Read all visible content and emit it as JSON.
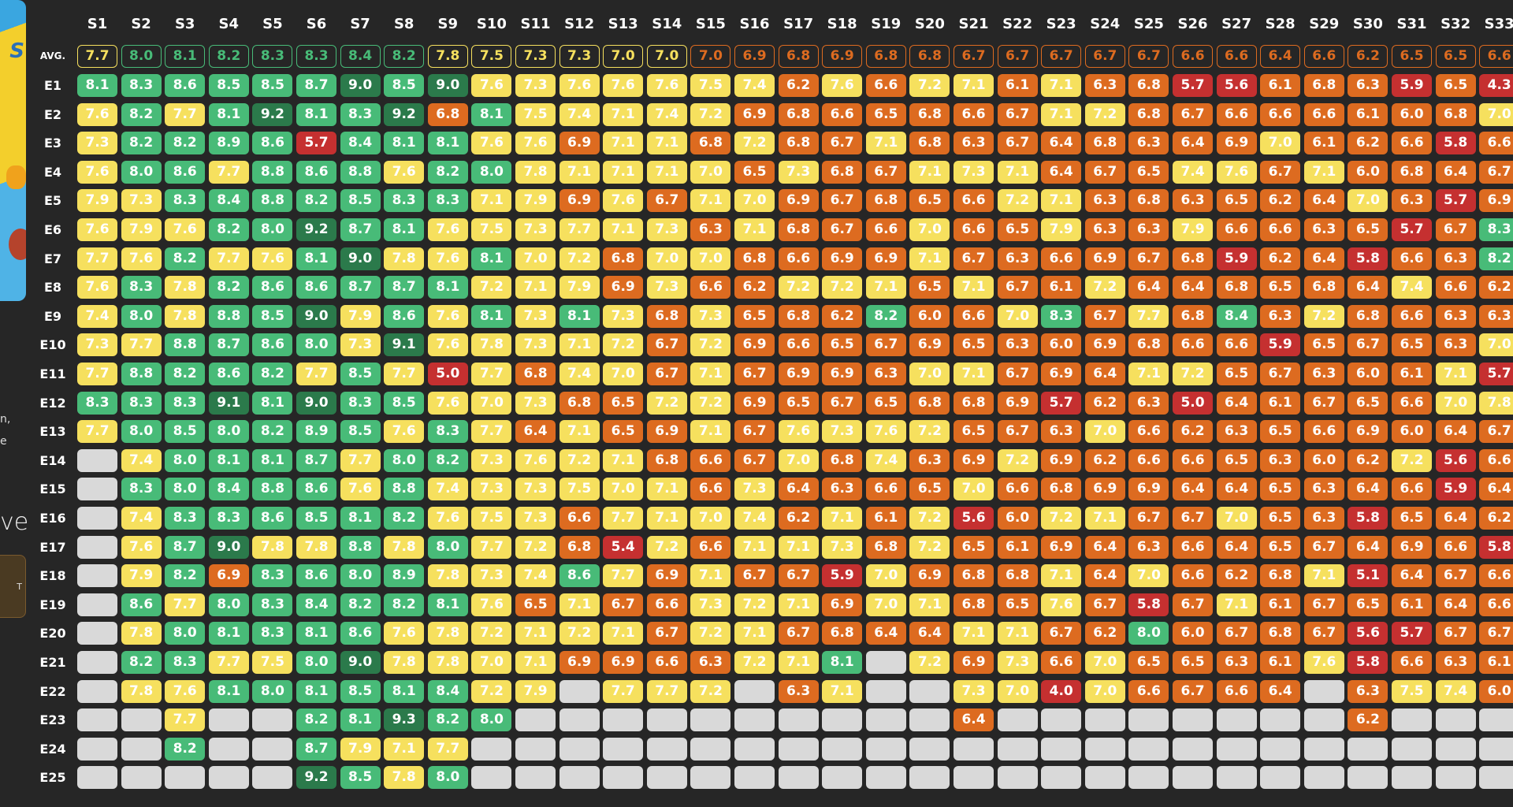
{
  "sidebar": {
    "poster_alt": "Simpsons poster",
    "fragment_1": "n,",
    "fragment_2": "e",
    "fragment_big": "ve",
    "button_label": "T"
  },
  "grid": {
    "avg_label": "AVG.",
    "columns": [
      "S1",
      "S2",
      "S3",
      "S4",
      "S5",
      "S6",
      "S7",
      "S8",
      "S9",
      "S10",
      "S11",
      "S12",
      "S13",
      "S14",
      "S15",
      "S16",
      "S17",
      "S18",
      "S19",
      "S20",
      "S21",
      "S22",
      "S23",
      "S24",
      "S25",
      "S26",
      "S27",
      "S28",
      "S29",
      "S30",
      "S31",
      "S32",
      "S33"
    ],
    "averages": [
      "7.7",
      "8.0",
      "8.1",
      "8.2",
      "8.3",
      "8.3",
      "8.4",
      "8.2",
      "7.8",
      "7.5",
      "7.3",
      "7.3",
      "7.0",
      "7.0",
      "7.0",
      "6.9",
      "6.8",
      "6.9",
      "6.8",
      "6.8",
      "6.7",
      "6.7",
      "6.7",
      "6.7",
      "6.7",
      "6.6",
      "6.6",
      "6.4",
      "6.6",
      "6.2",
      "6.5",
      "6.5",
      "6.6"
    ],
    "rows": [
      {
        "label": "E1",
        "values": [
          "8.1",
          "8.3",
          "8.6",
          "8.5",
          "8.5",
          "8.7",
          "9.0",
          "8.5",
          "9.0",
          "7.6",
          "7.3",
          "7.6",
          "7.6",
          "7.6",
          "7.5",
          "7.4",
          "6.2",
          "7.6",
          "6.6",
          "7.2",
          "7.1",
          "6.1",
          "7.1",
          "6.3",
          "6.8",
          "5.7",
          "5.6",
          "6.1",
          "6.8",
          "6.3",
          "5.9",
          "6.5",
          "4.3"
        ]
      },
      {
        "label": "E2",
        "values": [
          "7.6",
          "8.2",
          "7.7",
          "8.1",
          "9.2",
          "8.1",
          "8.3",
          "9.2",
          "6.8",
          "8.1",
          "7.5",
          "7.4",
          "7.1",
          "7.4",
          "7.2",
          "6.9",
          "6.8",
          "6.6",
          "6.5",
          "6.8",
          "6.6",
          "6.7",
          "7.1",
          "7.2",
          "6.8",
          "6.7",
          "6.6",
          "6.6",
          "6.6",
          "6.1",
          "6.0",
          "6.8",
          "7.0"
        ]
      },
      {
        "label": "E3",
        "values": [
          "7.3",
          "8.2",
          "8.2",
          "8.9",
          "8.6",
          "5.7",
          "8.4",
          "8.1",
          "8.1",
          "7.6",
          "7.6",
          "6.9",
          "7.1",
          "7.1",
          "6.8",
          "7.2",
          "6.8",
          "6.7",
          "7.1",
          "6.8",
          "6.3",
          "6.7",
          "6.4",
          "6.8",
          "6.3",
          "6.4",
          "6.9",
          "7.0",
          "6.1",
          "6.2",
          "6.6",
          "5.8",
          "6.6"
        ]
      },
      {
        "label": "E4",
        "values": [
          "7.6",
          "8.0",
          "8.6",
          "7.7",
          "8.8",
          "8.6",
          "8.8",
          "7.6",
          "8.2",
          "8.0",
          "7.8",
          "7.1",
          "7.1",
          "7.1",
          "7.0",
          "6.5",
          "7.3",
          "6.8",
          "6.7",
          "7.1",
          "7.3",
          "7.1",
          "6.4",
          "6.7",
          "6.5",
          "7.4",
          "7.6",
          "6.7",
          "7.1",
          "6.0",
          "6.8",
          "6.4",
          "6.7"
        ]
      },
      {
        "label": "E5",
        "values": [
          "7.9",
          "7.3",
          "8.3",
          "8.4",
          "8.8",
          "8.2",
          "8.5",
          "8.3",
          "8.3",
          "7.1",
          "7.9",
          "6.9",
          "7.6",
          "6.7",
          "7.1",
          "7.0",
          "6.9",
          "6.7",
          "6.8",
          "6.5",
          "6.6",
          "7.2",
          "7.1",
          "6.3",
          "6.8",
          "6.3",
          "6.5",
          "6.2",
          "6.4",
          "7.0",
          "6.3",
          "5.7",
          "6.9"
        ]
      },
      {
        "label": "E6",
        "values": [
          "7.6",
          "7.9",
          "7.6",
          "8.2",
          "8.0",
          "9.2",
          "8.7",
          "8.1",
          "7.6",
          "7.5",
          "7.3",
          "7.7",
          "7.1",
          "7.3",
          "6.3",
          "7.1",
          "6.8",
          "6.7",
          "6.6",
          "7.0",
          "6.6",
          "6.5",
          "7.9",
          "6.3",
          "6.3",
          "7.9",
          "6.6",
          "6.6",
          "6.3",
          "6.5",
          "5.7",
          "6.7",
          "8.3"
        ]
      },
      {
        "label": "E7",
        "values": [
          "7.7",
          "7.6",
          "8.2",
          "7.7",
          "7.6",
          "8.1",
          "9.0",
          "7.8",
          "7.6",
          "8.1",
          "7.0",
          "7.2",
          "6.8",
          "7.0",
          "7.0",
          "6.8",
          "6.6",
          "6.9",
          "6.9",
          "7.1",
          "6.7",
          "6.3",
          "6.6",
          "6.9",
          "6.7",
          "6.8",
          "5.9",
          "6.2",
          "6.4",
          "5.8",
          "6.6",
          "6.3",
          "8.2"
        ]
      },
      {
        "label": "E8",
        "values": [
          "7.6",
          "8.3",
          "7.8",
          "8.2",
          "8.6",
          "8.6",
          "8.7",
          "8.7",
          "8.1",
          "7.2",
          "7.1",
          "7.9",
          "6.9",
          "7.3",
          "6.6",
          "6.2",
          "7.2",
          "7.2",
          "7.1",
          "6.5",
          "7.1",
          "6.7",
          "6.1",
          "7.2",
          "6.4",
          "6.4",
          "6.8",
          "6.5",
          "6.8",
          "6.4",
          "7.4",
          "6.6",
          "6.2"
        ]
      },
      {
        "label": "E9",
        "values": [
          "7.4",
          "8.0",
          "7.8",
          "8.8",
          "8.5",
          "9.0",
          "7.9",
          "8.6",
          "7.6",
          "8.1",
          "7.3",
          "8.1",
          "7.3",
          "6.8",
          "7.3",
          "6.5",
          "6.8",
          "6.2",
          "8.2",
          "6.0",
          "6.6",
          "7.0",
          "8.3",
          "6.7",
          "7.7",
          "6.8",
          "8.4",
          "6.3",
          "7.2",
          "6.8",
          "6.6",
          "6.3",
          "6.3"
        ]
      },
      {
        "label": "E10",
        "values": [
          "7.3",
          "7.7",
          "8.8",
          "8.7",
          "8.6",
          "8.0",
          "7.3",
          "9.1",
          "7.6",
          "7.8",
          "7.3",
          "7.1",
          "7.2",
          "6.7",
          "7.2",
          "6.9",
          "6.6",
          "6.5",
          "6.7",
          "6.9",
          "6.5",
          "6.3",
          "6.0",
          "6.9",
          "6.8",
          "6.6",
          "6.6",
          "5.9",
          "6.5",
          "6.7",
          "6.5",
          "6.3",
          "7.0"
        ]
      },
      {
        "label": "E11",
        "values": [
          "7.7",
          "8.8",
          "8.2",
          "8.6",
          "8.2",
          "7.7",
          "8.5",
          "7.7",
          "5.0",
          "7.7",
          "6.8",
          "7.4",
          "7.0",
          "6.7",
          "7.1",
          "6.7",
          "6.9",
          "6.9",
          "6.3",
          "7.0",
          "7.1",
          "6.7",
          "6.9",
          "6.4",
          "7.1",
          "7.2",
          "6.5",
          "6.7",
          "6.3",
          "6.0",
          "6.1",
          "7.1",
          "5.7"
        ]
      },
      {
        "label": "E12",
        "values": [
          "8.3",
          "8.3",
          "8.3",
          "9.1",
          "8.1",
          "9.0",
          "8.3",
          "8.5",
          "7.6",
          "7.0",
          "7.3",
          "6.8",
          "6.5",
          "7.2",
          "7.2",
          "6.9",
          "6.5",
          "6.7",
          "6.5",
          "6.8",
          "6.8",
          "6.9",
          "5.7",
          "6.2",
          "6.3",
          "5.0",
          "6.4",
          "6.1",
          "6.7",
          "6.5",
          "6.6",
          "7.0",
          "7.8"
        ]
      },
      {
        "label": "E13",
        "values": [
          "7.7",
          "8.0",
          "8.5",
          "8.0",
          "8.2",
          "8.9",
          "8.5",
          "7.6",
          "8.3",
          "7.7",
          "6.4",
          "7.1",
          "6.5",
          "6.9",
          "7.1",
          "6.7",
          "7.6",
          "7.3",
          "7.6",
          "7.2",
          "6.5",
          "6.7",
          "6.3",
          "7.0",
          "6.6",
          "6.2",
          "6.3",
          "6.5",
          "6.6",
          "6.9",
          "6.0",
          "6.4",
          "6.7"
        ]
      },
      {
        "label": "E14",
        "values": [
          null,
          "7.4",
          "8.0",
          "8.1",
          "8.1",
          "8.7",
          "7.7",
          "8.0",
          "8.2",
          "7.3",
          "7.6",
          "7.2",
          "7.1",
          "6.8",
          "6.6",
          "6.7",
          "7.0",
          "6.8",
          "7.4",
          "6.3",
          "6.9",
          "7.2",
          "6.9",
          "6.2",
          "6.6",
          "6.6",
          "6.5",
          "6.3",
          "6.0",
          "6.2",
          "7.2",
          "5.6",
          "6.6"
        ]
      },
      {
        "label": "E15",
        "values": [
          null,
          "8.3",
          "8.0",
          "8.4",
          "8.8",
          "8.6",
          "7.6",
          "8.8",
          "7.4",
          "7.3",
          "7.3",
          "7.5",
          "7.0",
          "7.1",
          "6.6",
          "7.3",
          "6.4",
          "6.3",
          "6.6",
          "6.5",
          "7.0",
          "6.6",
          "6.8",
          "6.9",
          "6.9",
          "6.4",
          "6.4",
          "6.5",
          "6.3",
          "6.4",
          "6.6",
          "5.9",
          "6.4"
        ]
      },
      {
        "label": "E16",
        "values": [
          null,
          "7.4",
          "8.3",
          "8.3",
          "8.6",
          "8.5",
          "8.1",
          "8.2",
          "7.6",
          "7.5",
          "7.3",
          "6.6",
          "7.7",
          "7.1",
          "7.0",
          "7.4",
          "6.2",
          "7.1",
          "6.1",
          "7.2",
          "5.6",
          "6.0",
          "7.2",
          "7.1",
          "6.7",
          "6.7",
          "7.0",
          "6.5",
          "6.3",
          "5.8",
          "6.5",
          "6.4",
          "6.2"
        ]
      },
      {
        "label": "E17",
        "values": [
          null,
          "7.6",
          "8.7",
          "9.0",
          "7.8",
          "7.8",
          "8.8",
          "7.8",
          "8.0",
          "7.7",
          "7.2",
          "6.8",
          "5.4",
          "7.2",
          "6.6",
          "7.1",
          "7.1",
          "7.3",
          "6.8",
          "7.2",
          "6.5",
          "6.1",
          "6.9",
          "6.4",
          "6.3",
          "6.6",
          "6.4",
          "6.5",
          "6.7",
          "6.4",
          "6.9",
          "6.6",
          "5.8"
        ]
      },
      {
        "label": "E18",
        "values": [
          null,
          "7.9",
          "8.2",
          "6.9",
          "8.3",
          "8.6",
          "8.0",
          "8.9",
          "7.8",
          "7.3",
          "7.4",
          "8.6",
          "7.7",
          "6.9",
          "7.1",
          "6.7",
          "6.7",
          "5.9",
          "7.0",
          "6.9",
          "6.8",
          "6.8",
          "7.1",
          "6.4",
          "7.0",
          "6.6",
          "6.2",
          "6.8",
          "7.1",
          "5.1",
          "6.4",
          "6.7",
          "6.6"
        ]
      },
      {
        "label": "E19",
        "values": [
          null,
          "8.6",
          "7.7",
          "8.0",
          "8.3",
          "8.4",
          "8.2",
          "8.2",
          "8.1",
          "7.6",
          "6.5",
          "7.1",
          "6.7",
          "6.6",
          "7.3",
          "7.2",
          "7.1",
          "6.9",
          "7.0",
          "7.1",
          "6.8",
          "6.5",
          "7.6",
          "6.7",
          "5.8",
          "6.7",
          "7.1",
          "6.1",
          "6.7",
          "6.5",
          "6.1",
          "6.4",
          "6.6"
        ]
      },
      {
        "label": "E20",
        "values": [
          null,
          "7.8",
          "8.0",
          "8.1",
          "8.3",
          "8.1",
          "8.6",
          "7.6",
          "7.8",
          "7.2",
          "7.1",
          "7.2",
          "7.1",
          "6.7",
          "7.2",
          "7.1",
          "6.7",
          "6.8",
          "6.4",
          "6.4",
          "7.1",
          "7.1",
          "6.7",
          "6.2",
          "8.0",
          "6.0",
          "6.7",
          "6.8",
          "6.7",
          "5.6",
          "5.7",
          "6.7",
          "6.7"
        ]
      },
      {
        "label": "E21",
        "values": [
          null,
          "8.2",
          "8.3",
          "7.7",
          "7.5",
          "8.0",
          "9.0",
          "7.8",
          "7.8",
          "7.0",
          "7.1",
          "6.9",
          "6.9",
          "6.6",
          "6.3",
          "7.2",
          "7.1",
          "8.1",
          null,
          "7.2",
          "6.9",
          "7.3",
          "6.6",
          "7.0",
          "6.5",
          "6.5",
          "6.3",
          "6.1",
          "7.6",
          "5.8",
          "6.6",
          "6.3",
          "6.1"
        ]
      },
      {
        "label": "E22",
        "values": [
          null,
          "7.8",
          "7.6",
          "8.1",
          "8.0",
          "8.1",
          "8.5",
          "8.1",
          "8.4",
          "7.2",
          "7.9",
          null,
          "7.7",
          "7.7",
          "7.2",
          null,
          "6.3",
          "7.1",
          null,
          null,
          "7.3",
          "7.0",
          "4.0",
          "7.0",
          "6.6",
          "6.7",
          "6.6",
          "6.4",
          null,
          "6.3",
          "7.5",
          "7.4",
          "6.0"
        ]
      },
      {
        "label": "E23",
        "values": [
          null,
          null,
          "7.7",
          null,
          null,
          "8.2",
          "8.1",
          "9.3",
          "8.2",
          "8.0",
          null,
          null,
          null,
          null,
          null,
          null,
          null,
          null,
          null,
          null,
          "6.4",
          null,
          null,
          null,
          null,
          null,
          null,
          null,
          null,
          "6.2",
          null,
          null,
          null
        ]
      },
      {
        "label": "E24",
        "values": [
          null,
          null,
          "8.2",
          null,
          null,
          "8.7",
          "7.9",
          "7.1",
          "7.7",
          null,
          null,
          null,
          null,
          null,
          null,
          null,
          null,
          null,
          null,
          null,
          null,
          null,
          null,
          null,
          null,
          null,
          null,
          null,
          null,
          null,
          null,
          null,
          null
        ]
      },
      {
        "label": "E25",
        "values": [
          null,
          null,
          null,
          null,
          null,
          "9.2",
          "8.5",
          "7.8",
          "8.0",
          null,
          null,
          null,
          null,
          null,
          null,
          null,
          null,
          null,
          null,
          null,
          null,
          null,
          null,
          null,
          null,
          null,
          null,
          null,
          null,
          null,
          null,
          null,
          null
        ]
      }
    ]
  },
  "colors": {
    "background": "#262626",
    "excellent": "#2b7a4b",
    "great": "#48bb78",
    "good": "#f6e05e",
    "regular": "#dd6b20",
    "bad": "#c53030",
    "empty": "#d9d9d9"
  }
}
